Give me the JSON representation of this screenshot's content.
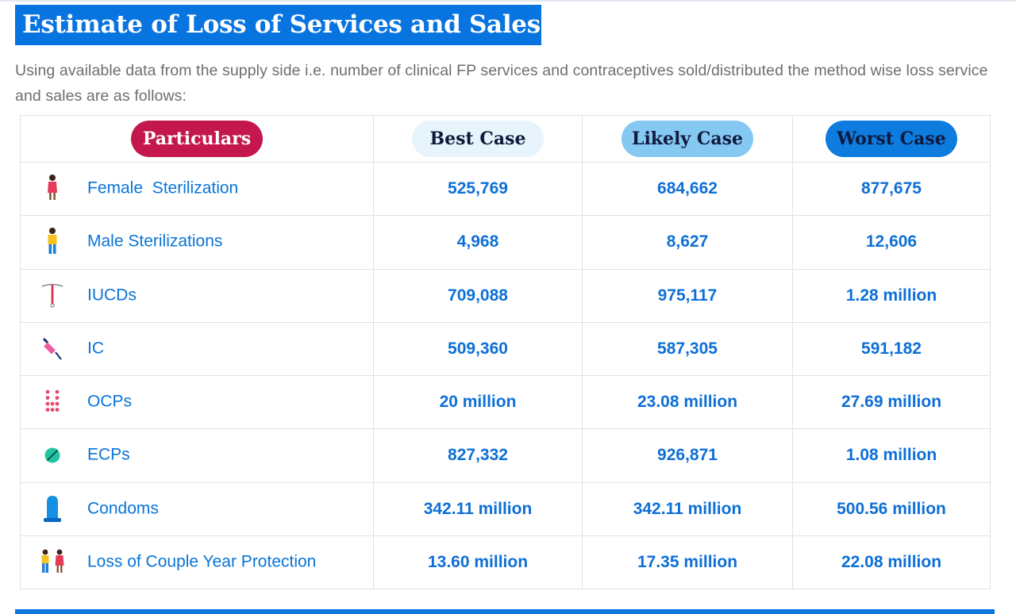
{
  "page": {
    "title": "Estimate of Loss of Services and Sales",
    "intro": "Using available data from the supply side i.e. number of clinical FP services and contraceptives sold/distributed the method wise loss service and sales are as follows:"
  },
  "table": {
    "headers": {
      "particulars": "Particulars",
      "best": "Best Case",
      "likely": "Likely Case",
      "worst": "Worst Case"
    },
    "rows": [
      {
        "icon": "female-figure-icon",
        "label": "Female  Sterilization",
        "best": "525,769",
        "likely": "684,662",
        "worst": "877,675"
      },
      {
        "icon": "male-figure-icon",
        "label": "Male Sterilizations",
        "best": "4,968",
        "likely": "8,627",
        "worst": "12,606"
      },
      {
        "icon": "iucd-icon",
        "label": "IUCDs",
        "best": "709,088",
        "likely": "975,117",
        "worst": "1.28 million"
      },
      {
        "icon": "syringe-icon",
        "label": "IC",
        "best": "509,360",
        "likely": "587,305",
        "worst": "591,182"
      },
      {
        "icon": "pill-pack-icon",
        "label": "OCPs",
        "best": "20 million",
        "likely": "23.08 million",
        "worst": "27.69 million"
      },
      {
        "icon": "pill-icon",
        "label": "ECPs",
        "best": "827,332",
        "likely": "926,871",
        "worst": "1.08 million"
      },
      {
        "icon": "condom-icon",
        "label": "Condoms",
        "best": "342.11 million",
        "likely": "342.11 million",
        "worst": "500.56 million"
      },
      {
        "icon": "couple-icon",
        "label": "Loss of Couple Year Protection",
        "best": "13.60 million",
        "likely": "17.35 million",
        "worst": "22.08 million"
      }
    ]
  },
  "colors": {
    "brand_blue": "#0874e0",
    "particulars_pill": "#c4174d",
    "best_pill": "#e7f4fc",
    "likely_pill": "#85c8f2",
    "worst_pill": "#0e7bdf",
    "value_text": "#0d6fd6"
  }
}
